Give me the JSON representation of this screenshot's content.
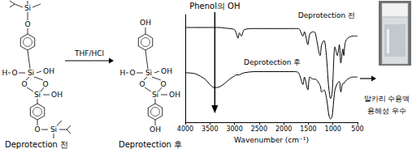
{
  "chart_data": {
    "type": "line",
    "x_label": "Wavenumber (cm⁻¹)",
    "x": [
      4000,
      3800,
      3600,
      3500,
      3400,
      3300,
      3200,
      3100,
      3000,
      2960,
      2930,
      2900,
      2860,
      2800,
      2600,
      2400,
      2200,
      2000,
      1800,
      1700,
      1610,
      1580,
      1510,
      1470,
      1400,
      1360,
      1260,
      1230,
      1180,
      1130,
      1100,
      1080,
      1050,
      1020,
      1000,
      960,
      910,
      870,
      840,
      800,
      780,
      750,
      700,
      600,
      500
    ],
    "series": [
      {
        "name": "Deprotection 전",
        "color": "#000000",
        "values": [
          88,
          88,
          88,
          88,
          88,
          88,
          87.5,
          87,
          86,
          82,
          78,
          83,
          80,
          86,
          87,
          87,
          87,
          87,
          87,
          87,
          80,
          84,
          72,
          82,
          84,
          83,
          62,
          72,
          76,
          60,
          40,
          30,
          22,
          26,
          40,
          70,
          62,
          72,
          55,
          68,
          62,
          74,
          78,
          80,
          80
        ]
      },
      {
        "name": "Deprotection 후",
        "color": "#000000",
        "values": [
          46,
          45,
          40,
          35,
          32,
          33,
          36,
          40,
          43,
          44,
          44,
          44,
          45,
          46,
          47,
          47,
          47,
          47,
          47,
          46,
          35,
          42,
          30,
          42,
          40,
          40,
          34,
          28,
          30,
          22,
          12,
          6,
          3,
          5,
          12,
          30,
          36,
          38,
          28,
          36,
          36,
          38,
          40,
          42,
          42
        ]
      }
    ],
    "xlim": [
      4000,
      500
    ],
    "xticks": [
      4000,
      3500,
      3000,
      2500,
      2000,
      1500,
      1000,
      500
    ],
    "ylim": [
      0,
      100
    ],
    "tick_labels": "x",
    "grid": false,
    "annotations": [
      {
        "text": "Phenol의 OH",
        "x": 3400
      }
    ]
  },
  "scheme": {
    "reagent": "THF/HCl",
    "reactant": {
      "label": "Deprotection 전",
      "atoms": [
        "Si",
        "O",
        "H",
        "O",
        "Si",
        "OH",
        "O",
        "O",
        "Si",
        "OH",
        "O",
        "Si"
      ]
    },
    "product": {
      "label": "Deprotection 후",
      "atoms": [
        "OH",
        "H",
        "O",
        "Si",
        "OH",
        "O",
        "O",
        "Si",
        "OH",
        "OH"
      ]
    }
  },
  "photo": {
    "caption": [
      "알카리 수용액",
      "용해성 우수"
    ]
  }
}
